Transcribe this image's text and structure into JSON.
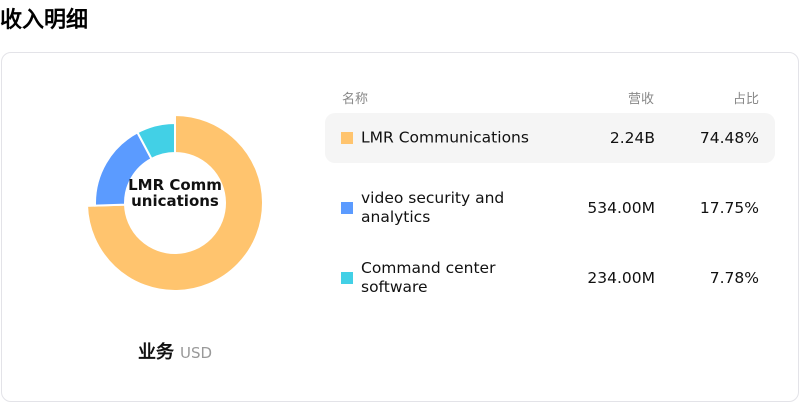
{
  "page_title": "收入明细",
  "table": {
    "headers": [
      "名称",
      "营收",
      "占比"
    ]
  },
  "caption": {
    "main": "业务",
    "unit": "USD"
  },
  "chart_data": {
    "type": "pie",
    "donut": true,
    "center_label": "LMR Communications",
    "highlighted": "LMR Communications",
    "categories": [
      "LMR Communications",
      "video security and analytics",
      "Command center software"
    ],
    "revenue_labels": [
      "2.24B",
      "534.00M",
      "234.00M"
    ],
    "percent_labels": [
      "74.48%",
      "17.75%",
      "7.78%"
    ],
    "values": [
      74.48,
      17.75,
      7.78
    ],
    "colors": [
      "#FFC46E",
      "#5B9BFF",
      "#42D0E6"
    ]
  }
}
